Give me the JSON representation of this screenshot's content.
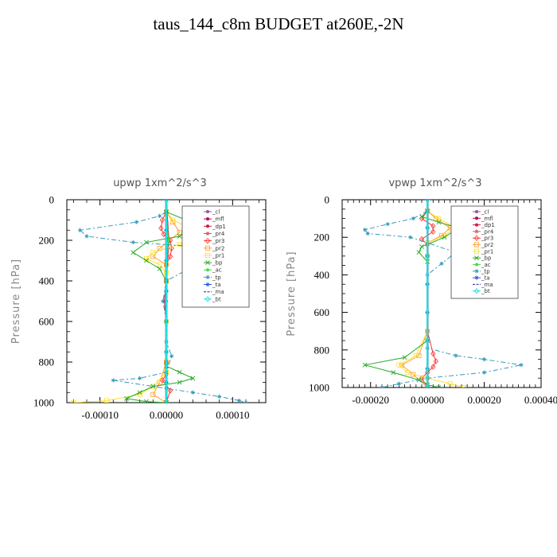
{
  "figure_title": "taus_144_c8m  BUDGET at260E,-2N",
  "chart_data": [
    {
      "type": "line",
      "title": "upwp   1xm^2/s^3",
      "ylabel": "Pressure [hPa]",
      "xlabel": "",
      "xlim": [
        -0.00015,
        0.00015
      ],
      "ylim": [
        1000,
        0
      ],
      "xticks": [
        -0.0001,
        0.0,
        0.0001
      ],
      "xtick_labels": [
        "-0.00010",
        "0.00000",
        "0.00010"
      ],
      "yticks": [
        0,
        200,
        400,
        600,
        800,
        1000
      ],
      "ytick_labels": [
        "0",
        "200",
        "400",
        "600",
        "800",
        "1000"
      ],
      "legend_position": "upper-right",
      "grid": false,
      "series": [
        {
          "name": "_cl",
          "color": "#8a5aa8",
          "marker": "dot",
          "dash": "",
          "x": [
            0,
            0,
            0,
            0,
            0,
            0,
            0,
            0
          ],
          "y": [
            0,
            150,
            300,
            450,
            600,
            750,
            900,
            1000
          ]
        },
        {
          "name": "_mfl",
          "color": "#b8005a",
          "marker": "dot",
          "dash": "",
          "x": [
            0,
            0,
            0,
            0,
            0,
            0,
            0,
            0
          ],
          "y": [
            0,
            150,
            300,
            450,
            600,
            750,
            900,
            1000
          ]
        },
        {
          "name": "_dp1",
          "color": "#d0154a",
          "marker": "dot",
          "dash": "",
          "x": [
            0,
            4e-06,
            0,
            -3e-06,
            0,
            0,
            0,
            0
          ],
          "y": [
            0,
            200,
            400,
            500,
            600,
            800,
            900,
            1000
          ]
        },
        {
          "name": "_pr4",
          "color": "#e05050",
          "marker": "star",
          "dash": "",
          "x": [
            0,
            0,
            0,
            0,
            0,
            0,
            0,
            0
          ],
          "y": [
            0,
            150,
            300,
            450,
            600,
            750,
            900,
            1000
          ]
        },
        {
          "name": "_pr3",
          "color": "#ff3030",
          "marker": "diamond",
          "dash": "",
          "x": [
            0,
            -6e-06,
            -8e-06,
            -4e-06,
            6e-06,
            8e-06,
            6e-06,
            0,
            0,
            0,
            0,
            0,
            -6e-06,
            6e-06,
            0
          ],
          "y": [
            60,
            100,
            140,
            170,
            200,
            240,
            280,
            320,
            400,
            600,
            800,
            860,
            890,
            940,
            1000
          ]
        },
        {
          "name": "_pr2",
          "color": "#ffa030",
          "marker": "square",
          "dash": "",
          "x": [
            0,
            1e-05,
            2e-05,
            -1e-05,
            -2e-05,
            0,
            0,
            0,
            0,
            -1e-05,
            -2e-05,
            0
          ],
          "y": [
            60,
            110,
            160,
            240,
            280,
            320,
            400,
            600,
            800,
            900,
            960,
            1000
          ]
        },
        {
          "name": "_pr1",
          "color": "#ffe030",
          "marker": "square",
          "dash": "",
          "x": [
            0,
            1e-05,
            3.5e-05,
            5e-05,
            2e-05,
            -2e-05,
            -3e-05,
            -1e-05,
            0,
            0,
            0,
            -2e-05,
            -4e-05,
            -9e-05,
            -0.00014
          ],
          "y": [
            60,
            100,
            140,
            180,
            220,
            260,
            290,
            320,
            360,
            600,
            850,
            920,
            960,
            990,
            1000
          ]
        },
        {
          "name": "_bp",
          "color": "#22aa22",
          "marker": "x",
          "dash": "",
          "x": [
            0,
            3e-05,
            4e-05,
            2e-05,
            -3e-05,
            -5e-05,
            -3e-05,
            -1e-05,
            0,
            0,
            2e-05,
            4e-05,
            2e-05,
            -2e-05,
            -4e-05,
            -6e-05,
            -3e-05,
            0
          ],
          "y": [
            60,
            100,
            140,
            180,
            210,
            260,
            300,
            340,
            400,
            820,
            850,
            880,
            900,
            920,
            950,
            980,
            995,
            1000
          ]
        },
        {
          "name": "_ac",
          "color": "#44dd44",
          "marker": "dot",
          "dash": "",
          "x": [
            0,
            3e-06,
            0,
            0,
            0,
            0,
            0,
            0
          ],
          "y": [
            0,
            200,
            400,
            500,
            600,
            800,
            900,
            1000
          ]
        },
        {
          "name": "_tp",
          "color": "#3399bb",
          "marker": "star",
          "dash": "6,3,2,3",
          "x": [
            0,
            -1e-05,
            -4.5e-05,
            -0.00013,
            -0.00012,
            -5e-05,
            4e-05,
            0.00012,
            4e-05,
            0,
            -5e-06,
            0,
            0,
            8e-06,
            0,
            -4e-05,
            -8e-05,
            0,
            4e-05,
            8e-05,
            0.00011,
            0.00012
          ],
          "y": [
            60,
            80,
            110,
            150,
            180,
            210,
            230,
            270,
            330,
            400,
            500,
            600,
            700,
            770,
            850,
            880,
            890,
            930,
            950,
            970,
            990,
            1000
          ]
        },
        {
          "name": "_ta",
          "color": "#2255dd",
          "marker": "star",
          "dash": "",
          "x": [
            0,
            0,
            0,
            0,
            0,
            0,
            0,
            0
          ],
          "y": [
            0,
            150,
            300,
            450,
            600,
            750,
            900,
            1000
          ]
        },
        {
          "name": "_ma",
          "color": "#2222aa",
          "marker": "none",
          "dash": "4,2",
          "x": [
            0,
            0,
            0,
            0,
            0,
            0,
            0,
            0
          ],
          "y": [
            0,
            150,
            300,
            450,
            600,
            750,
            900,
            1000
          ]
        },
        {
          "name": "_bt",
          "color": "#22dddd",
          "marker": "diamond",
          "dash": "",
          "x": [
            0,
            0,
            0,
            0,
            0,
            0,
            0,
            0
          ],
          "y": [
            0,
            150,
            300,
            450,
            600,
            750,
            900,
            1000
          ]
        }
      ]
    },
    {
      "type": "line",
      "title": "vpwp   1xm^2/s^3",
      "ylabel": "Pressure [hPa]",
      "xlabel": "",
      "xlim": [
        -0.0003,
        0.0004
      ],
      "ylim": [
        1000,
        0
      ],
      "xticks": [
        -0.0002,
        0.0,
        0.0002,
        0.0004
      ],
      "xtick_labels": [
        "-0.00020",
        "0.00000",
        "0.00020",
        "0.00040"
      ],
      "yticks": [
        0,
        200,
        400,
        600,
        800,
        1000
      ],
      "ytick_labels": [
        "0",
        "200",
        "400",
        "600",
        "800",
        "1000"
      ],
      "legend_position": "upper-right",
      "grid": false,
      "series": [
        {
          "name": "_cl",
          "color": "#8a5aa8",
          "marker": "dot",
          "dash": "",
          "x": [
            0,
            0,
            0,
            0,
            0,
            0,
            0,
            0
          ],
          "y": [
            0,
            150,
            300,
            450,
            600,
            750,
            900,
            1000
          ]
        },
        {
          "name": "_mfl",
          "color": "#b8005a",
          "marker": "dot",
          "dash": "",
          "x": [
            0,
            0,
            0,
            0,
            0,
            0,
            0,
            0
          ],
          "y": [
            0,
            150,
            300,
            450,
            600,
            750,
            900,
            1000
          ]
        },
        {
          "name": "_dp1",
          "color": "#d0154a",
          "marker": "dot",
          "dash": "",
          "x": [
            0,
            0,
            0,
            0,
            0,
            0,
            0,
            0
          ],
          "y": [
            0,
            150,
            300,
            450,
            600,
            750,
            900,
            1000
          ]
        },
        {
          "name": "_pr4",
          "color": "#e05050",
          "marker": "star",
          "dash": "",
          "x": [
            0,
            0,
            0,
            0,
            0,
            0,
            0,
            0
          ],
          "y": [
            0,
            150,
            300,
            450,
            600,
            750,
            900,
            1000
          ]
        },
        {
          "name": "_pr3",
          "color": "#ff3030",
          "marker": "diamond",
          "dash": "",
          "x": [
            0,
            -2e-05,
            2e-05,
            2e-05,
            -2e-05,
            0,
            0,
            0,
            2e-05,
            3e-05,
            2e-05,
            0,
            -2e-05,
            0
          ],
          "y": [
            60,
            100,
            140,
            170,
            210,
            240,
            300,
            700,
            820,
            860,
            890,
            920,
            950,
            1000
          ]
        },
        {
          "name": "_pr2",
          "color": "#ffa030",
          "marker": "square",
          "dash": "",
          "x": [
            0,
            3e-05,
            8e-05,
            5e-05,
            0,
            0,
            0,
            -3e-05,
            -9e-05,
            -5e-05,
            0
          ],
          "y": [
            60,
            100,
            150,
            190,
            230,
            300,
            700,
            830,
            880,
            930,
            1000
          ]
        },
        {
          "name": "_pr1",
          "color": "#ffe030",
          "marker": "square",
          "dash": "",
          "x": [
            0,
            4e-05,
            0.0001,
            6e-05,
            0,
            0,
            0,
            -4e-05,
            -0.0001,
            -7e-05,
            0,
            8e-05,
            0.00013
          ],
          "y": [
            60,
            100,
            150,
            190,
            230,
            300,
            700,
            830,
            880,
            920,
            950,
            980,
            1000
          ]
        },
        {
          "name": "_bp",
          "color": "#22aa22",
          "marker": "x",
          "dash": "",
          "x": [
            0,
            -2e-05,
            4e-05,
            0.00011,
            6e-05,
            -2e-05,
            -3e-05,
            0,
            0,
            -8e-05,
            -0.00022,
            -0.00012,
            -3e-05,
            0,
            4e-05
          ],
          "y": [
            60,
            90,
            120,
            150,
            200,
            250,
            280,
            330,
            750,
            840,
            880,
            920,
            960,
            985,
            1000
          ]
        },
        {
          "name": "_ac",
          "color": "#44dd44",
          "marker": "dot",
          "dash": "",
          "x": [
            0,
            0,
            0,
            0,
            0,
            0,
            0,
            0
          ],
          "y": [
            0,
            150,
            300,
            450,
            600,
            750,
            900,
            1000
          ]
        },
        {
          "name": "_tp",
          "color": "#3399bb",
          "marker": "star",
          "dash": "6,3,2,3",
          "x": [
            0,
            -5e-05,
            -0.00014,
            -0.00022,
            -0.00021,
            -6e-05,
            0.0001,
            5e-05,
            0,
            0,
            0,
            0.0001,
            0.0002,
            0.00033,
            0.0002,
            0,
            -0.0001,
            -0.00016
          ],
          "y": [
            60,
            100,
            130,
            160,
            180,
            200,
            280,
            340,
            400,
            600,
            790,
            830,
            850,
            880,
            920,
            950,
            980,
            1000
          ]
        },
        {
          "name": "_ta",
          "color": "#2255dd",
          "marker": "star",
          "dash": "",
          "x": [
            0,
            0,
            0,
            0,
            0,
            0,
            0,
            0
          ],
          "y": [
            0,
            150,
            300,
            450,
            600,
            750,
            900,
            1000
          ]
        },
        {
          "name": "_ma",
          "color": "#2222aa",
          "marker": "none",
          "dash": "4,2",
          "x": [
            0,
            0,
            0,
            0,
            0,
            0,
            0,
            0
          ],
          "y": [
            0,
            150,
            300,
            450,
            600,
            750,
            900,
            1000
          ]
        },
        {
          "name": "_bt",
          "color": "#22dddd",
          "marker": "diamond",
          "dash": "",
          "x": [
            0,
            0,
            0,
            0,
            0,
            0,
            0,
            0
          ],
          "y": [
            0,
            150,
            300,
            450,
            600,
            750,
            900,
            1000
          ]
        }
      ]
    }
  ]
}
